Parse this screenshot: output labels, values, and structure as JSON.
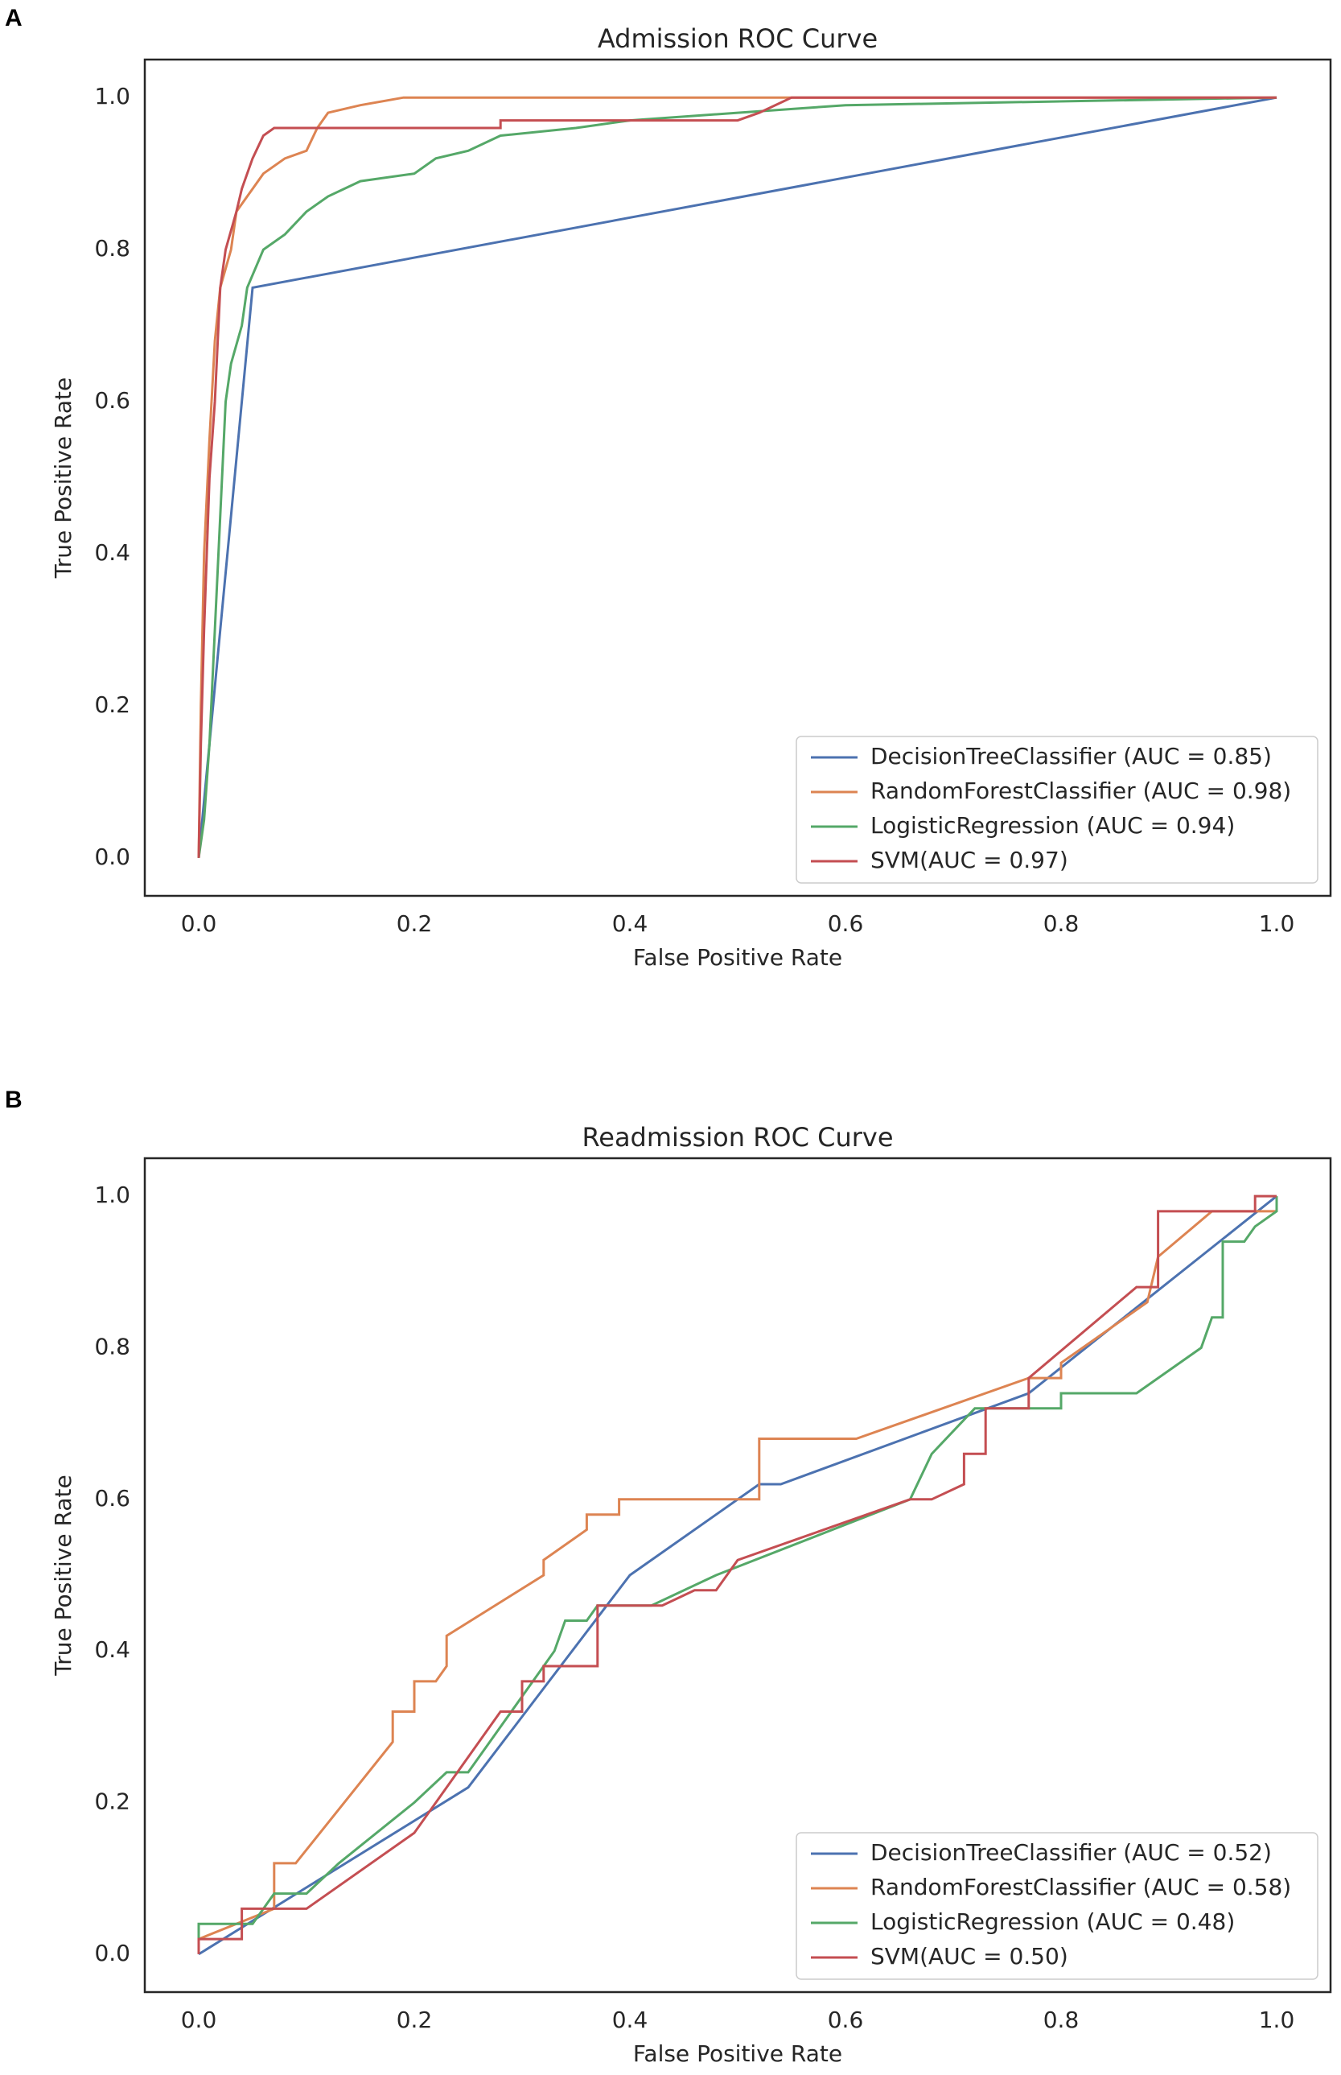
{
  "chart_data": [
    {
      "type": "line",
      "panel": "A",
      "title": "Admission ROC Curve",
      "xlabel": "False Positive Rate",
      "ylabel": "True Positive Rate",
      "xlim": [
        -0.05,
        1.05
      ],
      "ylim": [
        -0.05,
        1.05
      ],
      "xticks": [
        {
          "value": 0,
          "label": "0.0"
        },
        0.2,
        0.4,
        0.6,
        0.8,
        {
          "value": 1,
          "label": "1.0"
        }
      ],
      "yticks": [
        {
          "value": 0,
          "label": "0.0"
        },
        0.2,
        0.4,
        0.6,
        0.8,
        {
          "value": 1,
          "label": "1.0"
        }
      ],
      "grid": false,
      "legend": "lower right",
      "series": [
        {
          "name": "DecisionTreeClassifier (AUC = 0.85)",
          "color": "#4c72b0",
          "x": [
            0,
            0.05,
            1
          ],
          "values": [
            0,
            0.75,
            1
          ]
        },
        {
          "name": "RandomForestClassifier (AUC = 0.98)",
          "color": "#dd8452",
          "x": [
            0,
            0.002,
            0.005,
            0.01,
            0.015,
            0.02,
            0.03,
            0.035,
            0.045,
            0.05,
            0.06,
            0.08,
            0.1,
            0.11,
            0.12,
            0.15,
            0.19,
            1
          ],
          "values": [
            0,
            0.2,
            0.4,
            0.55,
            0.68,
            0.75,
            0.8,
            0.85,
            0.87,
            0.88,
            0.9,
            0.92,
            0.93,
            0.96,
            0.98,
            0.99,
            1,
            1
          ]
        },
        {
          "name": "LogisticRegression (AUC = 0.94)",
          "color": "#55a868",
          "x": [
            0,
            0.005,
            0.01,
            0.015,
            0.02,
            0.025,
            0.03,
            0.04,
            0.045,
            0.06,
            0.08,
            0.1,
            0.12,
            0.15,
            0.2,
            0.22,
            0.25,
            0.28,
            0.35,
            0.4,
            0.5,
            0.6,
            1
          ],
          "values": [
            0,
            0.05,
            0.15,
            0.3,
            0.45,
            0.6,
            0.65,
            0.7,
            0.75,
            0.8,
            0.82,
            0.85,
            0.87,
            0.89,
            0.9,
            0.92,
            0.93,
            0.95,
            0.96,
            0.97,
            0.98,
            0.99,
            1
          ]
        },
        {
          "name": "SVM(AUC = 0.97)",
          "color": "#c44e52",
          "x": [
            0,
            0.002,
            0.005,
            0.01,
            0.015,
            0.02,
            0.025,
            0.035,
            0.04,
            0.05,
            0.06,
            0.07,
            0.28,
            0.28,
            0.5,
            0.52,
            0.55,
            1
          ],
          "values": [
            0,
            0.15,
            0.3,
            0.5,
            0.6,
            0.75,
            0.8,
            0.85,
            0.88,
            0.92,
            0.95,
            0.96,
            0.96,
            0.97,
            0.97,
            0.98,
            1,
            1
          ]
        }
      ]
    },
    {
      "type": "line",
      "panel": "B",
      "title": "Readmission ROC Curve",
      "xlabel": "False Positive Rate",
      "ylabel": "True Positive Rate",
      "xlim": [
        -0.05,
        1.05
      ],
      "ylim": [
        -0.05,
        1.05
      ],
      "xticks": [
        {
          "value": 0,
          "label": "0.0"
        },
        0.2,
        0.4,
        0.6,
        0.8,
        {
          "value": 1,
          "label": "1.0"
        }
      ],
      "yticks": [
        {
          "value": 0,
          "label": "0.0"
        },
        0.2,
        0.4,
        0.6,
        0.8,
        {
          "value": 1,
          "label": "1.0"
        }
      ],
      "grid": false,
      "legend": "lower right",
      "series": [
        {
          "name": "DecisionTreeClassifier (AUC = 0.52)",
          "color": "#4c72b0",
          "x": [
            0,
            0.25,
            0.4,
            0.48,
            0.52,
            0.54,
            0.77,
            1
          ],
          "values": [
            0,
            0.22,
            0.5,
            0.58,
            0.62,
            0.62,
            0.74,
            1
          ]
        },
        {
          "name": "RandomForestClassifier (AUC = 0.58)",
          "color": "#dd8452",
          "x": [
            0,
            0.07,
            0.07,
            0.09,
            0.18,
            0.18,
            0.2,
            0.2,
            0.22,
            0.23,
            0.23,
            0.32,
            0.32,
            0.36,
            0.36,
            0.39,
            0.39,
            0.52,
            0.52,
            0.61,
            0.77,
            0.8,
            0.8,
            0.82,
            0.88,
            0.89,
            0.94,
            1
          ],
          "values": [
            0.02,
            0.06,
            0.12,
            0.12,
            0.28,
            0.32,
            0.32,
            0.36,
            0.36,
            0.38,
            0.42,
            0.5,
            0.52,
            0.56,
            0.58,
            0.58,
            0.6,
            0.6,
            0.68,
            0.68,
            0.76,
            0.76,
            0.78,
            0.8,
            0.86,
            0.92,
            0.98,
            0.98
          ]
        },
        {
          "name": "LogisticRegression (AUC = 0.48)",
          "color": "#55a868",
          "x": [
            0,
            0,
            0.05,
            0.07,
            0.1,
            0.13,
            0.2,
            0.23,
            0.25,
            0.33,
            0.34,
            0.36,
            0.37,
            0.42,
            0.48,
            0.66,
            0.68,
            0.72,
            0.8,
            0.8,
            0.87,
            0.93,
            0.94,
            0.95,
            0.95,
            0.97,
            0.98,
            1,
            1
          ],
          "values": [
            0.02,
            0.04,
            0.04,
            0.08,
            0.08,
            0.12,
            0.2,
            0.24,
            0.24,
            0.4,
            0.44,
            0.44,
            0.46,
            0.46,
            0.5,
            0.6,
            0.66,
            0.72,
            0.72,
            0.74,
            0.74,
            0.8,
            0.84,
            0.84,
            0.94,
            0.94,
            0.96,
            0.98,
            1
          ]
        },
        {
          "name": "SVM(AUC = 0.50)",
          "color": "#c44e52",
          "x": [
            0,
            0,
            0.04,
            0.04,
            0.1,
            0.2,
            0.28,
            0.3,
            0.3,
            0.32,
            0.32,
            0.37,
            0.37,
            0.43,
            0.46,
            0.48,
            0.5,
            0.66,
            0.68,
            0.71,
            0.71,
            0.73,
            0.73,
            0.77,
            0.77,
            0.87,
            0.89,
            0.89,
            0.98,
            0.98,
            1
          ],
          "values": [
            0,
            0.02,
            0.02,
            0.06,
            0.06,
            0.16,
            0.32,
            0.32,
            0.36,
            0.36,
            0.38,
            0.38,
            0.46,
            0.46,
            0.48,
            0.48,
            0.52,
            0.6,
            0.6,
            0.62,
            0.66,
            0.66,
            0.72,
            0.72,
            0.76,
            0.88,
            0.88,
            0.98,
            0.98,
            1,
            1
          ]
        }
      ]
    }
  ]
}
